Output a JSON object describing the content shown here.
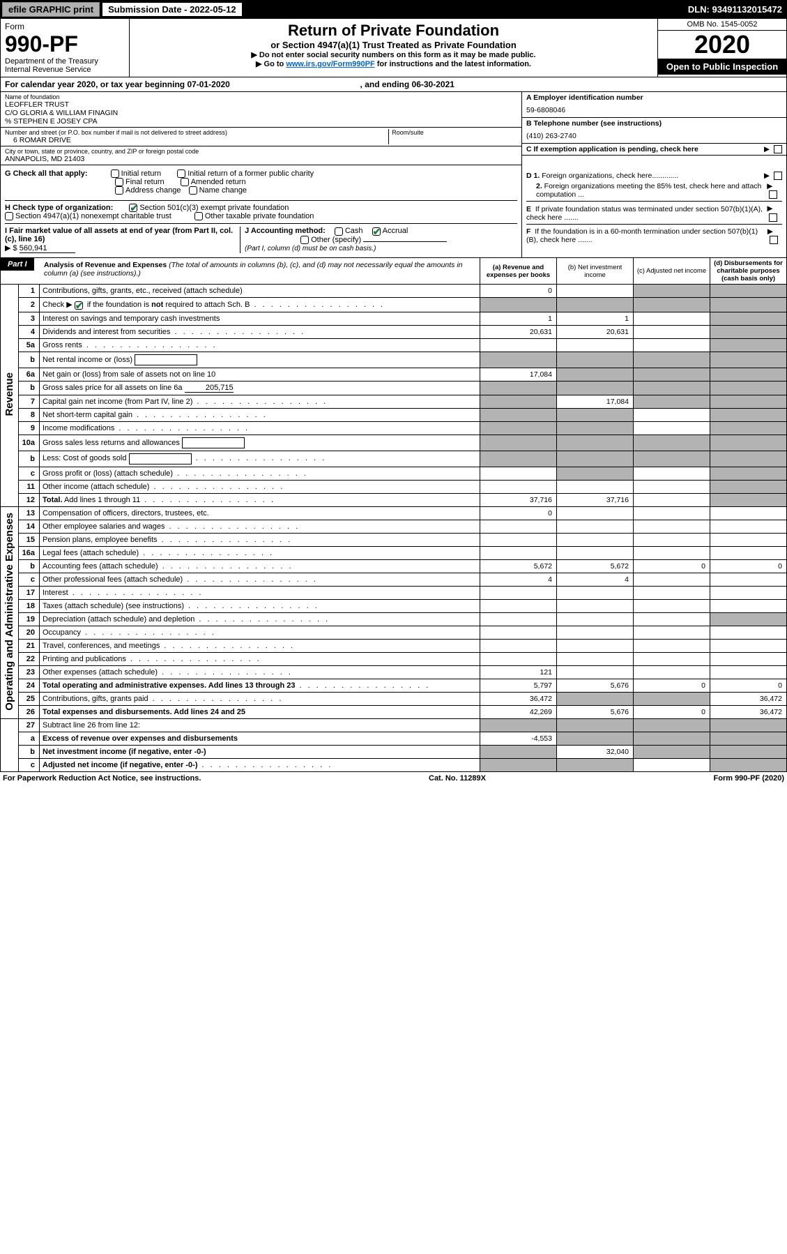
{
  "colors": {
    "black": "#000000",
    "white": "#ffffff",
    "gray_shade": "#b3b3b3",
    "btn_gray": "#b0b0b0",
    "link": "#0066cc",
    "check_green": "#1f7a3e"
  },
  "topbar": {
    "efile": "efile GRAPHIC print",
    "sub_label": "Submission Date - 2022-05-12",
    "dln": "DLN: 93491132015472"
  },
  "header": {
    "form_word": "Form",
    "form_num": "990-PF",
    "dept1": "Department of the Treasury",
    "dept2": "Internal Revenue Service",
    "title": "Return of Private Foundation",
    "subtitle": "or Section 4947(a)(1) Trust Treated as Private Foundation",
    "note1": "▶ Do not enter social security numbers on this form as it may be made public.",
    "note2_pre": "▶ Go to ",
    "note2_link": "www.irs.gov/Form990PF",
    "note2_post": " for instructions and the latest information.",
    "omb": "OMB No. 1545-0052",
    "year": "2020",
    "open": "Open to Public Inspection"
  },
  "calyear": {
    "prefix": "For calendar year 2020, or tax year beginning ",
    "begin": "07-01-2020",
    "mid": ", and ending ",
    "end": "06-30-2021"
  },
  "entity": {
    "name_lbl": "Name of foundation",
    "name1": "LEOFFLER TRUST",
    "name2": "C/O GLORIA & WILLIAM FINAGIN",
    "name3": "% STEPHEN E JOSEY CPA",
    "addr_lbl": "Number and street (or P.O. box number if mail is not delivered to street address)",
    "addr": "6 ROMAR DRIVE",
    "room_lbl": "Room/suite",
    "city_lbl": "City or town, state or province, country, and ZIP or foreign postal code",
    "city": "ANNAPOLIS, MD  21403",
    "a_lbl": "A Employer identification number",
    "a_val": "59-6808046",
    "b_lbl": "B Telephone number (see instructions)",
    "b_val": "(410) 263-2740",
    "c_lbl": "C If exemption application is pending, check here"
  },
  "g": {
    "label": "G Check all that apply:",
    "opts": [
      "Initial return",
      "Initial return of a former public charity",
      "Final return",
      "Amended return",
      "Address change",
      "Name change"
    ]
  },
  "h": {
    "label": "H Check type of organization:",
    "o1": "Section 501(c)(3) exempt private foundation",
    "o2": "Section 4947(a)(1) nonexempt charitable trust",
    "o3": "Other taxable private foundation"
  },
  "i": {
    "label": "I Fair market value of all assets at end of year (from Part II, col. (c), line 16)",
    "arrow": "▶ $",
    "val": "560,941"
  },
  "j": {
    "label": "J Accounting method:",
    "cash": "Cash",
    "accrual": "Accrual",
    "other": "Other (specify)",
    "note": "(Part I, column (d) must be on cash basis.)"
  },
  "d": {
    "d1": "D 1. Foreign organizations, check here",
    "d2": "2. Foreign organizations meeting the 85% test, check here and attach computation ...",
    "e": "E  If private foundation status was terminated under section 507(b)(1)(A), check here .......",
    "f": "F  If the foundation is in a 60-month termination under section 507(b)(1)(B), check here ......."
  },
  "part1": {
    "hdr": "Part I",
    "title": "Analysis of Revenue and Expenses",
    "title_note": " (The total of amounts in columns (b), (c), and (d) may not necessarily equal the amounts in column (a) (see instructions).)",
    "col_a": "(a)   Revenue and expenses per books",
    "col_b": "(b)   Net investment income",
    "col_c": "(c)   Adjusted net income",
    "col_d": "(d)  Disbursements for charitable purposes (cash basis only)"
  },
  "side": {
    "rev": "Revenue",
    "op": "Operating and Administrative Expenses"
  },
  "rows": [
    {
      "n": "1",
      "d": "Contributions, gifts, grants, etc., received (attach schedule)",
      "a": "0",
      "b": "",
      "c": "s",
      "dd": "s"
    },
    {
      "n": "2",
      "d": "Check ▶ ☑ if the foundation is not required to attach Sch. B",
      "dots": true,
      "a": "s",
      "b": "s",
      "c": "s",
      "dd": "s"
    },
    {
      "n": "3",
      "d": "Interest on savings and temporary cash investments",
      "a": "1",
      "b": "1",
      "c": "",
      "dd": "s"
    },
    {
      "n": "4",
      "d": "Dividends and interest from securities",
      "dots": true,
      "a": "20,631",
      "b": "20,631",
      "c": "",
      "dd": "s"
    },
    {
      "n": "5a",
      "d": "Gross rents",
      "dots": true,
      "a": "",
      "b": "",
      "c": "",
      "dd": "s"
    },
    {
      "n": "b",
      "d": "Net rental income or (loss)",
      "box": true,
      "a": "s",
      "b": "s",
      "c": "s",
      "dd": "s"
    },
    {
      "n": "6a",
      "d": "Net gain or (loss) from sale of assets not on line 10",
      "a": "17,084",
      "b": "s",
      "c": "s",
      "dd": "s"
    },
    {
      "n": "b",
      "d": "Gross sales price for all assets on line 6a",
      "inline": "205,715",
      "a": "s",
      "b": "s",
      "c": "s",
      "dd": "s"
    },
    {
      "n": "7",
      "d": "Capital gain net income (from Part IV, line 2)",
      "dots": true,
      "a": "s",
      "b": "17,084",
      "c": "s",
      "dd": "s"
    },
    {
      "n": "8",
      "d": "Net short-term capital gain",
      "dots": true,
      "a": "s",
      "b": "s",
      "c": "",
      "dd": "s"
    },
    {
      "n": "9",
      "d": "Income modifications",
      "dots": true,
      "a": "s",
      "b": "s",
      "c": "",
      "dd": "s"
    },
    {
      "n": "10a",
      "d": "Gross sales less returns and allowances",
      "box": true,
      "a": "s",
      "b": "s",
      "c": "s",
      "dd": "s"
    },
    {
      "n": "b",
      "d": "Less: Cost of goods sold",
      "dots": true,
      "box": true,
      "a": "s",
      "b": "s",
      "c": "s",
      "dd": "s"
    },
    {
      "n": "c",
      "d": "Gross profit or (loss) (attach schedule)",
      "dots": true,
      "a": "",
      "b": "s",
      "c": "",
      "dd": "s"
    },
    {
      "n": "11",
      "d": "Other income (attach schedule)",
      "dots": true,
      "a": "",
      "b": "",
      "c": "",
      "dd": "s"
    },
    {
      "n": "12",
      "d": "Total. Add lines 1 through 11",
      "bold": true,
      "dots": true,
      "a": "37,716",
      "b": "37,716",
      "c": "",
      "dd": "s"
    }
  ],
  "op_rows": [
    {
      "n": "13",
      "d": "Compensation of officers, directors, trustees, etc.",
      "a": "0",
      "b": "",
      "c": "",
      "dd": ""
    },
    {
      "n": "14",
      "d": "Other employee salaries and wages",
      "dots": true,
      "a": "",
      "b": "",
      "c": "",
      "dd": ""
    },
    {
      "n": "15",
      "d": "Pension plans, employee benefits",
      "dots": true,
      "a": "",
      "b": "",
      "c": "",
      "dd": ""
    },
    {
      "n": "16a",
      "d": "Legal fees (attach schedule)",
      "dots": true,
      "a": "",
      "b": "",
      "c": "",
      "dd": ""
    },
    {
      "n": "b",
      "d": "Accounting fees (attach schedule)",
      "dots": true,
      "a": "5,672",
      "b": "5,672",
      "c": "0",
      "dd": "0"
    },
    {
      "n": "c",
      "d": "Other professional fees (attach schedule)",
      "dots": true,
      "a": "4",
      "b": "4",
      "c": "",
      "dd": ""
    },
    {
      "n": "17",
      "d": "Interest",
      "dots": true,
      "a": "",
      "b": "",
      "c": "",
      "dd": ""
    },
    {
      "n": "18",
      "d": "Taxes (attach schedule) (see instructions)",
      "dots": true,
      "a": "",
      "b": "",
      "c": "",
      "dd": ""
    },
    {
      "n": "19",
      "d": "Depreciation (attach schedule) and depletion",
      "dots": true,
      "a": "",
      "b": "",
      "c": "",
      "dd": "s"
    },
    {
      "n": "20",
      "d": "Occupancy",
      "dots": true,
      "a": "",
      "b": "",
      "c": "",
      "dd": ""
    },
    {
      "n": "21",
      "d": "Travel, conferences, and meetings",
      "dots": true,
      "a": "",
      "b": "",
      "c": "",
      "dd": ""
    },
    {
      "n": "22",
      "d": "Printing and publications",
      "dots": true,
      "a": "",
      "b": "",
      "c": "",
      "dd": ""
    },
    {
      "n": "23",
      "d": "Other expenses (attach schedule)",
      "dots": true,
      "a": "121",
      "b": "",
      "c": "",
      "dd": ""
    },
    {
      "n": "24",
      "d": "Total operating and administrative expenses. Add lines 13 through 23",
      "bold": true,
      "dots": true,
      "a": "5,797",
      "b": "5,676",
      "c": "0",
      "dd": "0"
    },
    {
      "n": "25",
      "d": "Contributions, gifts, grants paid",
      "dots": true,
      "a": "36,472",
      "b": "s",
      "c": "s",
      "dd": "36,472"
    },
    {
      "n": "26",
      "d": "Total expenses and disbursements. Add lines 24 and 25",
      "bold": true,
      "a": "42,269",
      "b": "5,676",
      "c": "0",
      "dd": "36,472"
    }
  ],
  "net_rows": [
    {
      "n": "27",
      "d": "Subtract line 26 from line 12:",
      "a": "s",
      "b": "s",
      "c": "s",
      "dd": "s"
    },
    {
      "n": "a",
      "d": "Excess of revenue over expenses and disbursements",
      "bold": true,
      "a": "-4,553",
      "b": "s",
      "c": "s",
      "dd": "s"
    },
    {
      "n": "b",
      "d": "Net investment income (if negative, enter -0-)",
      "bold": true,
      "a": "s",
      "b": "32,040",
      "c": "s",
      "dd": "s"
    },
    {
      "n": "c",
      "d": "Adjusted net income (if negative, enter -0-)",
      "bold": true,
      "dots": true,
      "a": "s",
      "b": "s",
      "c": "",
      "dd": "s"
    }
  ],
  "footer": {
    "left": "For Paperwork Reduction Act Notice, see instructions.",
    "mid": "Cat. No. 11289X",
    "right": "Form 990-PF (2020)"
  }
}
